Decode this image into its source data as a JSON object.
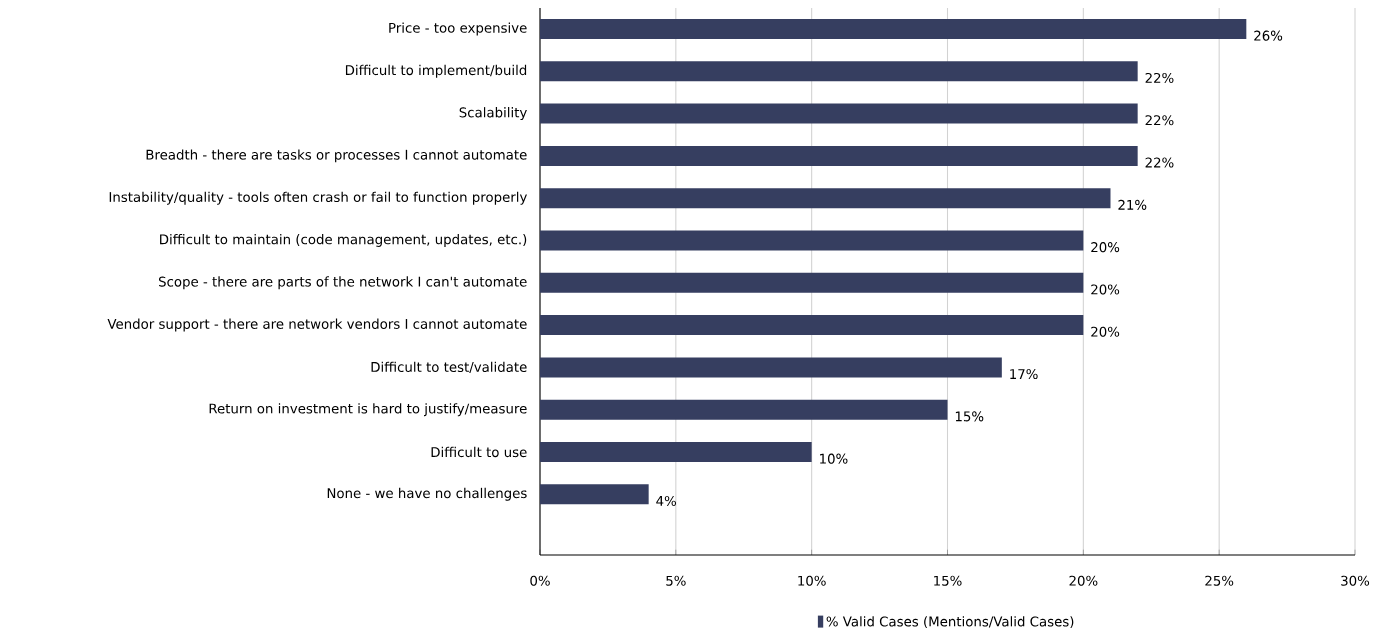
{
  "chart_data": {
    "type": "bar",
    "orientation": "horizontal",
    "categories": [
      "Price - too expensive",
      "Difficult to implement/build",
      "Scalability",
      "Breadth - there are tasks or processes I cannot automate",
      "Instability/quality - tools often crash or fail to function properly",
      "Difficult to maintain (code management, updates, etc.)",
      "Scope - there are parts of the network I can't automate",
      "Vendor support - there are network vendors I cannot automate",
      "Difficult to test/validate",
      "Return on investment is hard to justify/measure",
      "Difficult to use",
      "None - we have no challenges"
    ],
    "series": [
      {
        "name": "% Valid Cases (Mentions/Valid Cases)",
        "color": "#363e60",
        "values": [
          26,
          22,
          22,
          22,
          21,
          20,
          20,
          20,
          17,
          15,
          10,
          4
        ],
        "value_labels": [
          "26%",
          "22%",
          "22%",
          "22%",
          "21%",
          "20%",
          "20%",
          "20%",
          "17%",
          "15%",
          "10%",
          "4%"
        ]
      }
    ],
    "xlim": [
      0,
      30
    ],
    "xticks": [
      {
        "value": 0,
        "label": "0%"
      },
      {
        "value": 5,
        "label": "5%"
      },
      {
        "value": 10,
        "label": "10%"
      },
      {
        "value": 15,
        "label": "15%"
      },
      {
        "value": 20,
        "label": "20%"
      },
      {
        "value": 25,
        "label": "25%"
      },
      {
        "value": 30,
        "label": "30%"
      }
    ],
    "grid": "x",
    "legend": "bottom"
  }
}
